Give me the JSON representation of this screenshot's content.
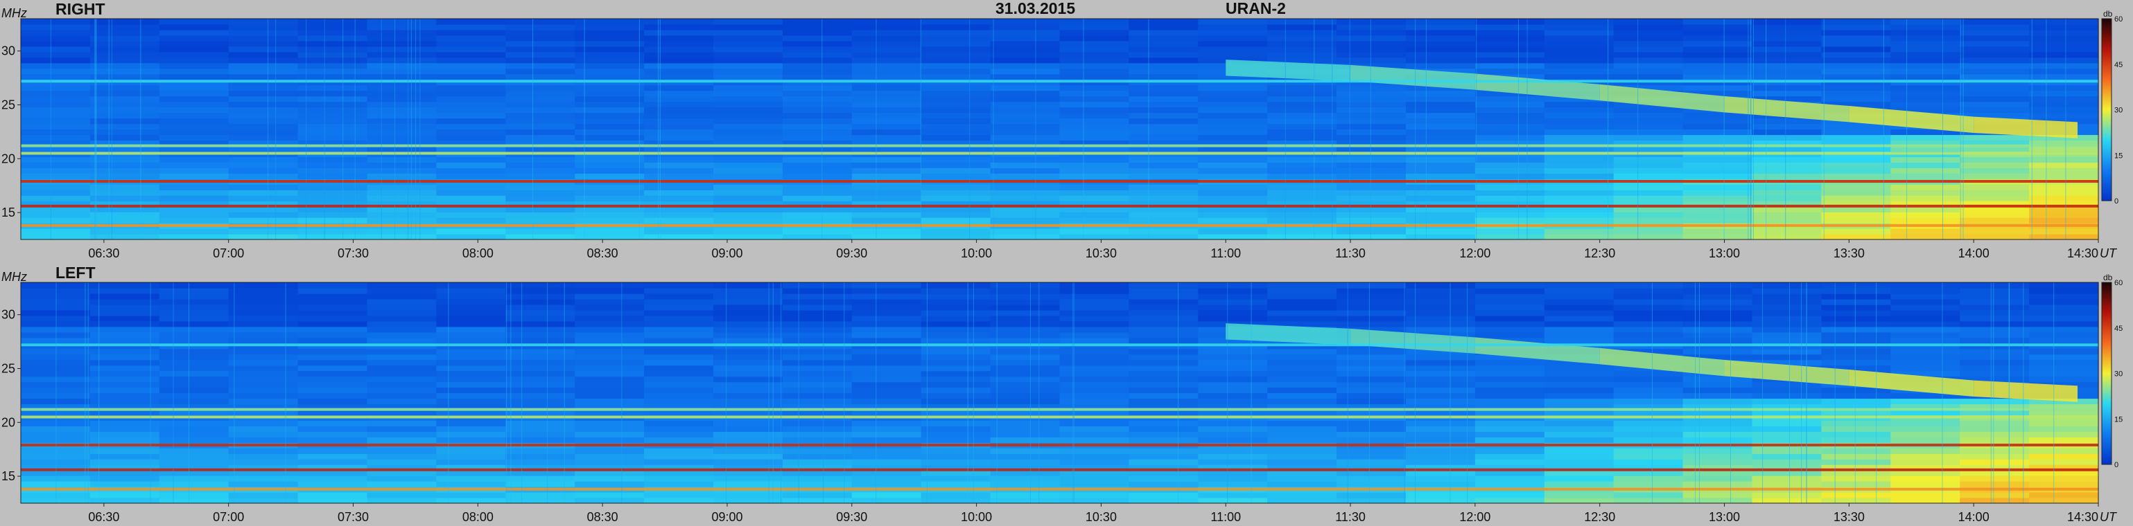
{
  "header": {
    "date": "31.03.2015",
    "instrument": "URAN-2"
  },
  "colors": {
    "background": "#bfbfbf",
    "colormap": [
      "#0033cc",
      "#0f7bf0",
      "#2ad6f2",
      "#f2f032",
      "#f46a1e",
      "#b5120a",
      "#1a0606"
    ]
  },
  "chart_data": [
    {
      "type": "heatmap",
      "title": "RIGHT",
      "ylabel": "MHz",
      "x_unit": "UT",
      "x_ticks": [
        "06:30",
        "07:00",
        "07:30",
        "08:00",
        "08:30",
        "09:00",
        "09:30",
        "10:00",
        "10:30",
        "11:00",
        "11:30",
        "12:00",
        "12:30",
        "13:00",
        "13:30",
        "14:00",
        "14:30"
      ],
      "x_range": [
        "06:10",
        "14:30"
      ],
      "y_ticks": [
        15,
        20,
        25,
        30
      ],
      "ylim": [
        12.5,
        33
      ],
      "colorbar": {
        "label": "db",
        "ticks": [
          0,
          15,
          30,
          45,
          60
        ],
        "range": [
          0,
          60
        ]
      },
      "features": {
        "steady_bands_mhz": [
          13.8,
          15.6,
          17.9,
          20.5,
          21.2,
          27.2
        ],
        "drifting_band": [
          {
            "time": "11:00",
            "freq": 28.3
          },
          {
            "time": "11:30",
            "freq": 27.8
          },
          {
            "time": "12:00",
            "freq": 27.0
          },
          {
            "time": "12:30",
            "freq": 26.0
          },
          {
            "time": "13:00",
            "freq": 24.9
          },
          {
            "time": "13:30",
            "freq": 24.0
          },
          {
            "time": "14:00",
            "freq": 23.0
          },
          {
            "time": "14:25",
            "freq": 22.5
          }
        ]
      }
    },
    {
      "type": "heatmap",
      "title": "LEFT",
      "ylabel": "MHz",
      "x_unit": "UT",
      "x_ticks": [
        "06:30",
        "07:00",
        "07:30",
        "08:00",
        "08:30",
        "09:00",
        "09:30",
        "10:00",
        "10:30",
        "11:00",
        "11:30",
        "12:00",
        "12:30",
        "13:00",
        "13:30",
        "14:00",
        "14:30"
      ],
      "x_range": [
        "06:10",
        "14:30"
      ],
      "y_ticks": [
        15,
        20,
        25,
        30
      ],
      "ylim": [
        12.5,
        33
      ],
      "colorbar": {
        "label": "db",
        "ticks": [
          0,
          15,
          30,
          45,
          60
        ],
        "range": [
          0,
          60
        ]
      },
      "features": {
        "steady_bands_mhz": [
          13.8,
          15.6,
          17.9,
          20.5,
          21.2,
          27.2
        ],
        "drifting_band": [
          {
            "time": "11:00",
            "freq": 28.3
          },
          {
            "time": "11:30",
            "freq": 27.8
          },
          {
            "time": "12:00",
            "freq": 27.0
          },
          {
            "time": "12:30",
            "freq": 26.0
          },
          {
            "time": "13:00",
            "freq": 24.9
          },
          {
            "time": "13:30",
            "freq": 24.0
          },
          {
            "time": "14:00",
            "freq": 23.0
          },
          {
            "time": "14:25",
            "freq": 22.5
          }
        ]
      }
    }
  ]
}
